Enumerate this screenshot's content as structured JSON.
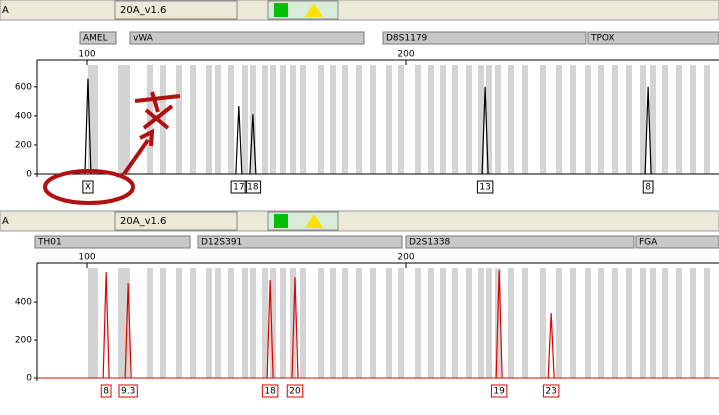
{
  "panels": [
    {
      "header": {
        "sample": "A",
        "panel": "20A_v1.6"
      },
      "loci": [
        "AMEL",
        "vWA",
        "D8S1179",
        "TPOX"
      ],
      "xlim": [
        84,
        298
      ],
      "xticks": [
        100,
        200
      ],
      "ylim": [
        0,
        750
      ],
      "yticks": [
        0,
        200,
        400,
        600
      ],
      "color": "#000000",
      "peaks": [
        {
          "x": 100.3,
          "height": 656,
          "label": "X"
        },
        {
          "x": 147.6,
          "height": 467,
          "label": "17"
        },
        {
          "x": 152,
          "height": 412,
          "label": "18"
        },
        {
          "x": 224.8,
          "height": 600,
          "label": "13"
        },
        {
          "x": 275.9,
          "height": 600,
          "label": "8"
        }
      ]
    },
    {
      "header": {
        "sample": "A",
        "panel": "20A_v1.6"
      },
      "loci": [
        "TH01",
        "D12S391",
        "D2S1338",
        "FGA"
      ],
      "xlim": [
        84,
        298
      ],
      "xticks": [
        100,
        200
      ],
      "ylim": [
        0,
        580
      ],
      "yticks": [
        0,
        200,
        400
      ],
      "color": "#e00000",
      "peaks": [
        {
          "x": 106,
          "height": 558,
          "label": "8"
        },
        {
          "x": 112.9,
          "height": 500,
          "label": "9.3"
        },
        {
          "x": 157.4,
          "height": 516,
          "label": "18"
        },
        {
          "x": 165.2,
          "height": 532,
          "label": "20"
        },
        {
          "x": 229.2,
          "height": 568,
          "label": "19"
        },
        {
          "x": 245.5,
          "height": 342,
          "label": "23"
        }
      ]
    }
  ]
}
